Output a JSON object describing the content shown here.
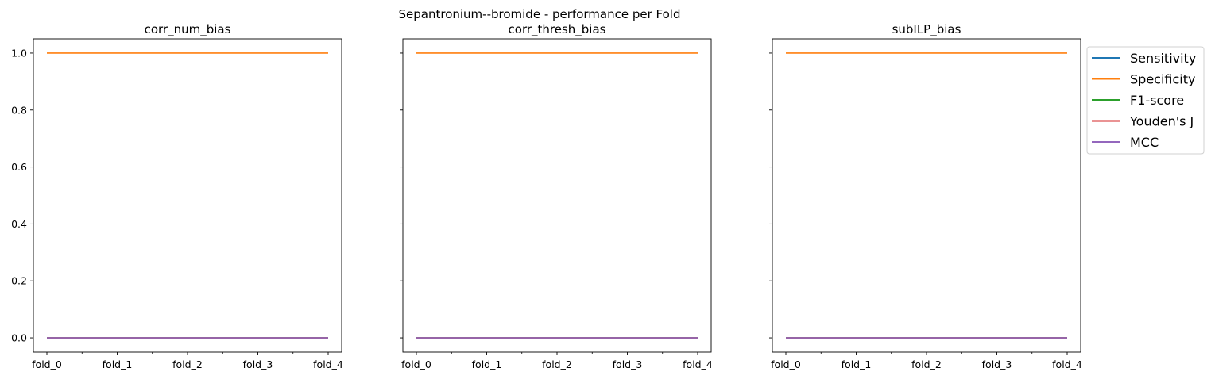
{
  "suptitle": "Sepantronium--bromide - performance per Fold",
  "chart_data": [
    {
      "type": "line",
      "title": "corr_num_bias",
      "categories": [
        "fold_0",
        "fold_1",
        "fold_2",
        "fold_3",
        "fold_4"
      ],
      "ylim": [
        -0.05,
        1.05
      ],
      "yticks": [
        "0.0",
        "0.2",
        "0.4",
        "0.6",
        "0.8",
        "1.0"
      ],
      "series": [
        {
          "name": "Sensitivity",
          "color": "#1f77b4",
          "values": [
            0,
            0,
            0,
            0,
            0
          ]
        },
        {
          "name": "Specificity",
          "color": "#ff7f0e",
          "values": [
            1,
            1,
            1,
            1,
            1
          ]
        },
        {
          "name": "F1-score",
          "color": "#2ca02c",
          "values": [
            0,
            0,
            0,
            0,
            0
          ]
        },
        {
          "name": "Youden's J",
          "color": "#d62728",
          "values": [
            0,
            0,
            0,
            0,
            0
          ]
        },
        {
          "name": "MCC",
          "color": "#9467bd",
          "values": [
            0,
            0,
            0,
            0,
            0
          ]
        }
      ]
    },
    {
      "type": "line",
      "title": "corr_thresh_bias",
      "categories": [
        "fold_0",
        "fold_1",
        "fold_2",
        "fold_3",
        "fold_4"
      ],
      "ylim": [
        -0.05,
        1.05
      ],
      "yticks": [
        "",
        "",
        "",
        "",
        "",
        ""
      ],
      "series": [
        {
          "name": "Sensitivity",
          "color": "#1f77b4",
          "values": [
            0,
            0,
            0,
            0,
            0
          ]
        },
        {
          "name": "Specificity",
          "color": "#ff7f0e",
          "values": [
            1,
            1,
            1,
            1,
            1
          ]
        },
        {
          "name": "F1-score",
          "color": "#2ca02c",
          "values": [
            0,
            0,
            0,
            0,
            0
          ]
        },
        {
          "name": "Youden's J",
          "color": "#d62728",
          "values": [
            0,
            0,
            0,
            0,
            0
          ]
        },
        {
          "name": "MCC",
          "color": "#9467bd",
          "values": [
            0,
            0,
            0,
            0,
            0
          ]
        }
      ]
    },
    {
      "type": "line",
      "title": "subILP_bias",
      "categories": [
        "fold_0",
        "fold_1",
        "fold_2",
        "fold_3",
        "fold_4"
      ],
      "ylim": [
        -0.05,
        1.05
      ],
      "yticks": [
        "",
        "",
        "",
        "",
        "",
        ""
      ],
      "legend_position": "outside-right",
      "series": [
        {
          "name": "Sensitivity",
          "color": "#1f77b4",
          "values": [
            0,
            0,
            0,
            0,
            0
          ]
        },
        {
          "name": "Specificity",
          "color": "#ff7f0e",
          "values": [
            1,
            1,
            1,
            1,
            1
          ]
        },
        {
          "name": "F1-score",
          "color": "#2ca02c",
          "values": [
            0,
            0,
            0,
            0,
            0
          ]
        },
        {
          "name": "Youden's J",
          "color": "#d62728",
          "values": [
            0,
            0,
            0,
            0,
            0
          ]
        },
        {
          "name": "MCC",
          "color": "#9467bd",
          "values": [
            0,
            0,
            0,
            0,
            0
          ]
        }
      ]
    }
  ]
}
